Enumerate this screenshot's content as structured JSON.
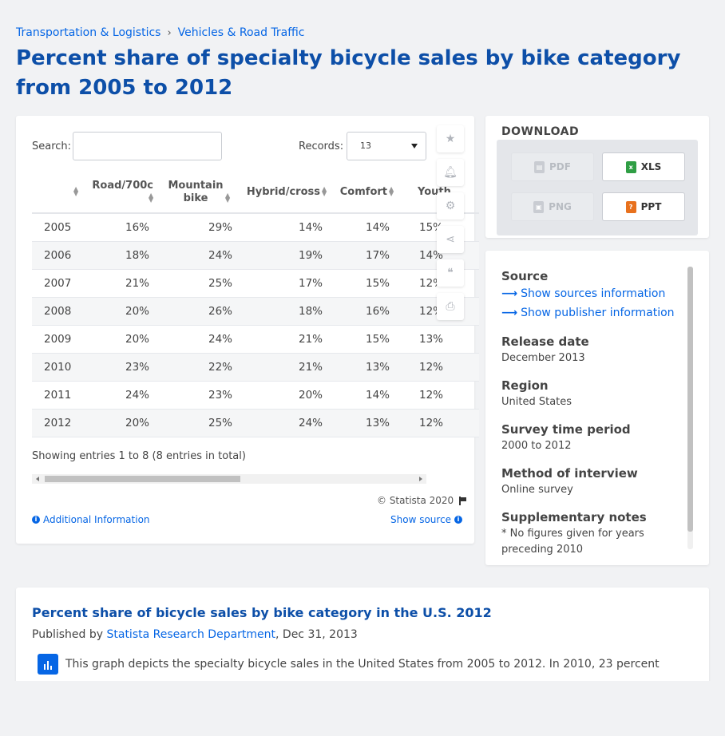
{
  "breadcrumb": {
    "items": [
      "Transportation & Logistics",
      "Vehicles & Road Traffic"
    ],
    "separator": "›"
  },
  "page": {
    "title": "Percent share of specialty bicycle sales by bike category from 2005 to 2012"
  },
  "table_controls": {
    "search_label": "Search:",
    "search_value": "",
    "records_label": "Records:",
    "records_value": "13"
  },
  "table": {
    "headers": [
      "",
      "Road/700c",
      "Mountain bike",
      "Hybrid/cross",
      "Comfort",
      "Youth"
    ],
    "rows": [
      [
        "2005",
        "16%",
        "29%",
        "14%",
        "14%",
        "15%"
      ],
      [
        "2006",
        "18%",
        "24%",
        "19%",
        "17%",
        "14%"
      ],
      [
        "2007",
        "21%",
        "25%",
        "17%",
        "15%",
        "12%"
      ],
      [
        "2008",
        "20%",
        "26%",
        "18%",
        "16%",
        "12%"
      ],
      [
        "2009",
        "20%",
        "24%",
        "21%",
        "15%",
        "13%"
      ],
      [
        "2010",
        "23%",
        "22%",
        "21%",
        "13%",
        "12%"
      ],
      [
        "2011",
        "24%",
        "23%",
        "20%",
        "14%",
        "12%"
      ],
      [
        "2012",
        "20%",
        "25%",
        "24%",
        "13%",
        "12%"
      ]
    ],
    "showing": "Showing entries 1 to 8 (8 entries in total)"
  },
  "footer": {
    "copyright": "© Statista 2020",
    "additional_info": "Additional Information",
    "show_source": "Show source"
  },
  "download": {
    "title": "DOWNLOAD",
    "buttons": [
      {
        "label": "PDF",
        "enabled": false
      },
      {
        "label": "XLS",
        "enabled": true
      },
      {
        "label": "PNG",
        "enabled": false
      },
      {
        "label": "PPT",
        "enabled": true
      }
    ]
  },
  "source_panel": {
    "source_heading": "Source",
    "show_sources": "Show sources information",
    "show_publisher": "Show publisher information",
    "release_date_heading": "Release date",
    "release_date": "December 2013",
    "region_heading": "Region",
    "region": "United States",
    "survey_period_heading": "Survey time period",
    "survey_period": "2000 to 2012",
    "method_heading": "Method of interview",
    "method": "Online survey",
    "notes_heading": "Supplementary notes",
    "notes": "* No figures given for years preceding 2010"
  },
  "description": {
    "title": "Percent share of bicycle sales by bike category in the U.S. 2012",
    "published_prefix": "Published by",
    "publisher": "Statista Research Department",
    "date": ", Dec 31, 2013",
    "text": "This graph depicts the specialty bicycle sales in the United States from 2005 to 2012. In 2010, 23 percent"
  },
  "colors": {
    "title_blue": "#0d4fa8",
    "link_blue": "#0666e5",
    "xls_green": "#2f9e44",
    "ppt_orange": "#e8711d"
  }
}
